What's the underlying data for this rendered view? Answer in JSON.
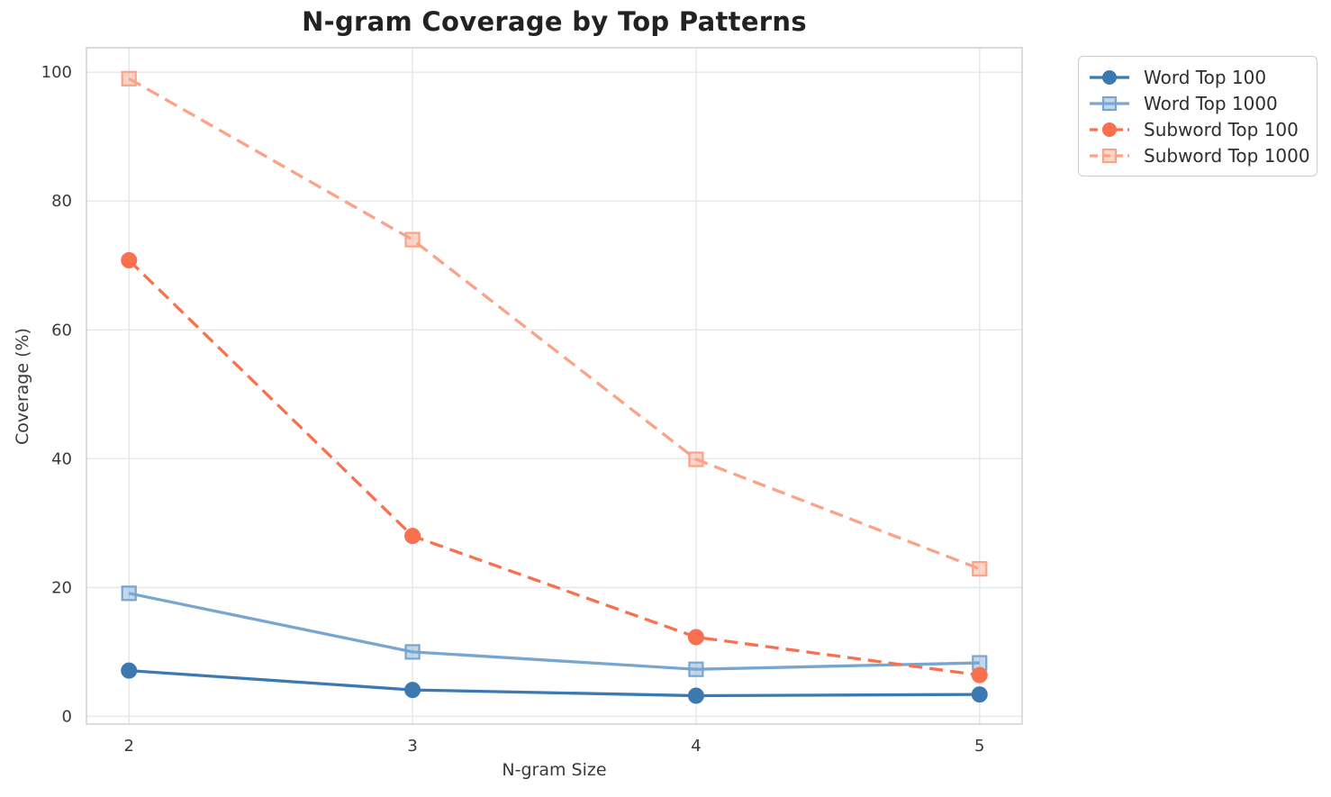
{
  "chart_data": {
    "type": "line",
    "title": "N-gram Coverage by Top Patterns",
    "xlabel": "N-gram Size",
    "ylabel": "Coverage (%)",
    "x": [
      2,
      3,
      4,
      5
    ],
    "xtick_labels": [
      "2",
      "3",
      "4",
      "5"
    ],
    "ytick_values": [
      0,
      20,
      40,
      60,
      80,
      100
    ],
    "ytick_labels": [
      "0",
      "20",
      "40",
      "60",
      "80",
      "100"
    ],
    "xlim": [
      1.85,
      5.15
    ],
    "ylim": [
      -1.2,
      103.8
    ],
    "grid": "both",
    "legend_position": "outside-upper-right",
    "series": [
      {
        "name": "Word Top 100",
        "values": [
          7.1,
          4.1,
          3.2,
          3.4
        ],
        "color": "#3c79b1",
        "marker": "circle",
        "linestyle": "solid"
      },
      {
        "name": "Word Top 1000",
        "values": [
          19.1,
          10.0,
          7.3,
          8.3
        ],
        "color": "#78a6d1",
        "marker": "square",
        "linestyle": "solid"
      },
      {
        "name": "Subword Top 100",
        "values": [
          70.8,
          28.0,
          12.3,
          6.4
        ],
        "color": "#f9704e",
        "marker": "circle",
        "linestyle": "dashed"
      },
      {
        "name": "Subword Top 1000",
        "values": [
          99.0,
          74.0,
          39.9,
          22.9
        ],
        "color": "#fba287",
        "marker": "square",
        "linestyle": "dashed"
      }
    ],
    "colors": {
      "grid": "#e7e7e7",
      "spine": "#cccccc",
      "tick_text": "#3a3a3a",
      "title_text": "#222222"
    }
  }
}
